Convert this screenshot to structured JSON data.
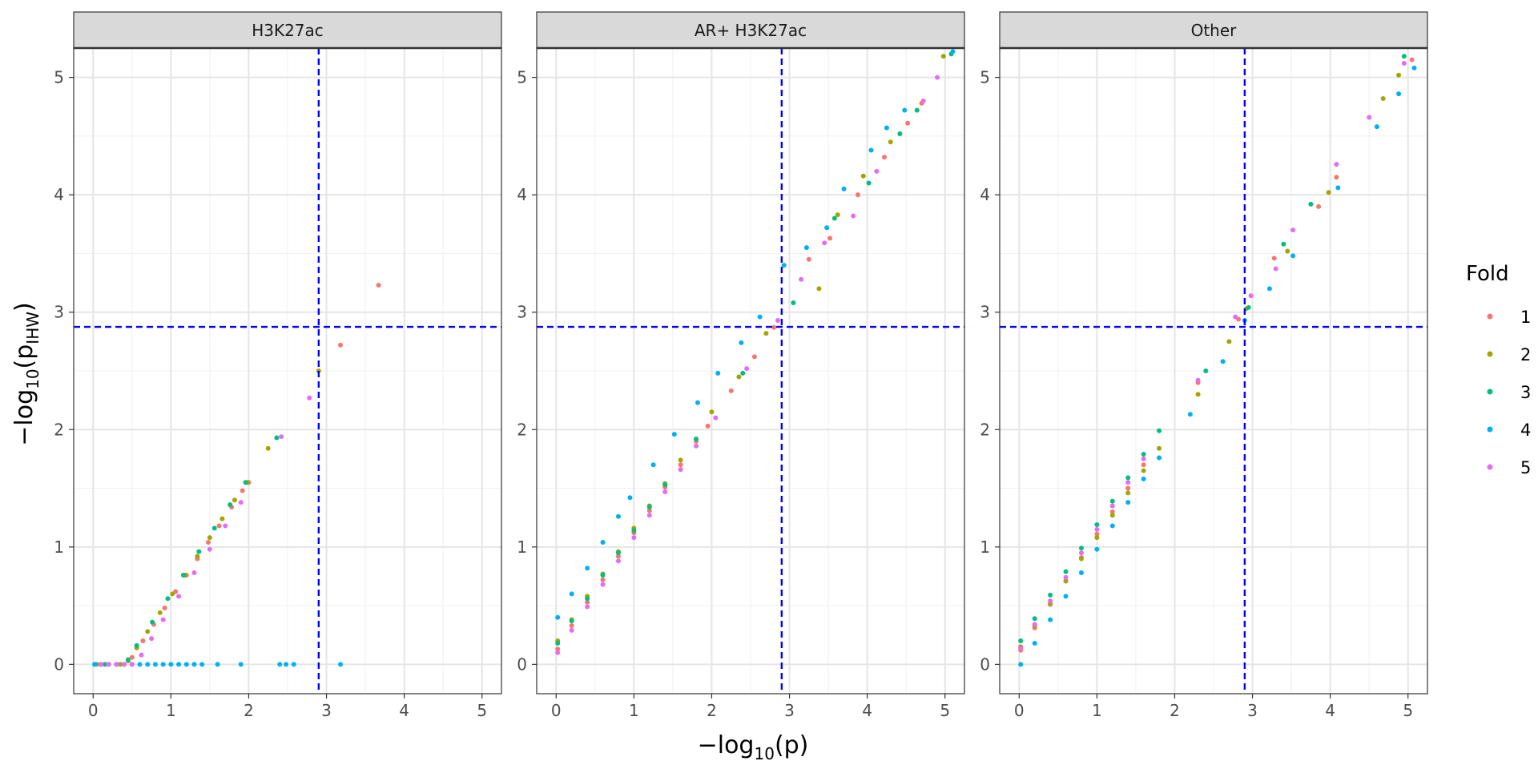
{
  "chart_data": {
    "type": "scatter",
    "xlabel": "−log10(p)",
    "ylabel": "−log10(pIHW)",
    "xlim": [
      -0.25,
      5.25
    ],
    "ylim": [
      -0.25,
      5.25
    ],
    "x_ticks": [
      0,
      1,
      2,
      3,
      4,
      5
    ],
    "y_ticks": [
      0,
      1,
      2,
      3,
      4,
      5
    ],
    "grid": true,
    "reference_lines": {
      "vertical_x": 2.9,
      "horizontal_y": 2.875,
      "color": "#0000ff",
      "style": "dashed"
    },
    "legend": {
      "title": "Fold",
      "position": "right",
      "entries": [
        {
          "label": "1",
          "color": "#F8766D"
        },
        {
          "label": "2",
          "color": "#A3A500"
        },
        {
          "label": "3",
          "color": "#00BF7D"
        },
        {
          "label": "4",
          "color": "#00B0F6"
        },
        {
          "label": "5",
          "color": "#E76BF3"
        }
      ]
    },
    "panels": [
      {
        "label": "H3K27ac",
        "series": [
          {
            "name": "1",
            "fold": 1,
            "x": [
              3.67,
              3.18,
              2.0,
              1.92,
              1.78,
              1.62,
              1.48,
              1.34,
              1.2,
              1.06,
              0.92,
              0.78,
              0.64,
              0.5
            ],
            "y": [
              3.23,
              2.72,
              1.55,
              1.48,
              1.34,
              1.18,
              1.04,
              0.9,
              0.76,
              0.62,
              0.48,
              0.34,
              0.2,
              0.06
            ]
          },
          {
            "name": "2",
            "fold": 2,
            "x": [
              2.9,
              2.25,
              1.98,
              1.82,
              1.66,
              1.5,
              1.34,
              1.18,
              1.02,
              0.86,
              0.7,
              0.56,
              0.45,
              0.35,
              0.2,
              0.05
            ],
            "y": [
              2.5,
              1.84,
              1.55,
              1.4,
              1.24,
              1.08,
              0.92,
              0.76,
              0.6,
              0.44,
              0.28,
              0.14,
              0.03,
              0.0,
              0.0,
              0.0
            ]
          },
          {
            "name": "3",
            "fold": 3,
            "x": [
              2.36,
              1.96,
              1.76,
              1.56,
              1.36,
              1.16,
              0.96,
              0.76,
              0.56,
              0.45,
              0.3,
              0.15,
              0.02
            ],
            "y": [
              1.93,
              1.55,
              1.36,
              1.16,
              0.96,
              0.76,
              0.56,
              0.36,
              0.16,
              0.04,
              0.0,
              0.0,
              0.0
            ]
          },
          {
            "name": "4",
            "fold": 4,
            "x": [
              3.18,
              2.58,
              2.48,
              2.4,
              1.9,
              1.6,
              1.4,
              1.3,
              1.2,
              1.1,
              1.0,
              0.9,
              0.8,
              0.7,
              0.6,
              0.5,
              0.4,
              0.3,
              0.2,
              0.1,
              0.02
            ],
            "y": [
              0,
              0,
              0,
              0,
              0,
              0,
              0,
              0,
              0,
              0,
              0,
              0,
              0,
              0,
              0,
              0,
              0,
              0,
              0,
              0,
              0
            ]
          },
          {
            "name": "5",
            "fold": 5,
            "x": [
              2.78,
              2.42,
              1.9,
              1.7,
              1.5,
              1.3,
              1.1,
              0.9,
              0.75,
              0.62,
              0.5,
              0.4,
              0.3,
              0.2,
              0.1
            ],
            "y": [
              2.27,
              1.94,
              1.38,
              1.18,
              0.98,
              0.78,
              0.58,
              0.38,
              0.22,
              0.08,
              0.0,
              0.0,
              0.0,
              0.0,
              0.0
            ]
          }
        ]
      },
      {
        "label": "AR+ H3K27ac",
        "series": [
          {
            "name": "1",
            "fold": 1,
            "x": [
              0.02,
              0.2,
              0.4,
              0.6,
              0.8,
              1.0,
              1.2,
              1.4,
              1.6,
              1.8,
              1.95,
              2.25,
              2.55,
              2.8,
              3.25,
              3.52,
              3.88,
              4.22,
              4.52,
              4.7
            ],
            "y": [
              0.13,
              0.33,
              0.53,
              0.72,
              0.92,
              1.12,
              1.31,
              1.51,
              1.7,
              1.9,
              2.03,
              2.33,
              2.62,
              2.87,
              3.45,
              3.63,
              4.0,
              4.32,
              4.61,
              4.78
            ]
          },
          {
            "name": "2",
            "fold": 2,
            "x": [
              0.02,
              0.2,
              0.4,
              0.6,
              0.8,
              1.0,
              1.2,
              1.4,
              1.6,
              2.0,
              2.35,
              2.7,
              3.38,
              3.62,
              3.95,
              4.3,
              4.98
            ],
            "y": [
              0.2,
              0.38,
              0.58,
              0.77,
              0.96,
              1.16,
              1.35,
              1.54,
              1.74,
              2.15,
              2.45,
              2.82,
              3.2,
              3.83,
              4.16,
              4.45,
              5.18
            ]
          },
          {
            "name": "3",
            "fold": 3,
            "x": [
              0.02,
              0.2,
              0.4,
              0.6,
              0.8,
              1.0,
              1.2,
              1.4,
              1.8,
              2.4,
              3.05,
              3.58,
              4.02,
              4.42,
              4.64,
              5.08
            ],
            "y": [
              0.18,
              0.37,
              0.56,
              0.76,
              0.95,
              1.14,
              1.34,
              1.53,
              1.92,
              2.48,
              3.08,
              3.8,
              4.1,
              4.52,
              4.72,
              5.2
            ]
          },
          {
            "name": "4",
            "fold": 4,
            "x": [
              0.02,
              0.2,
              0.4,
              0.6,
              0.8,
              0.95,
              1.25,
              1.52,
              1.82,
              2.08,
              2.38,
              2.62,
              2.93,
              3.22,
              3.48,
              3.7,
              4.05,
              4.25,
              4.48,
              5.1
            ],
            "y": [
              0.4,
              0.6,
              0.82,
              1.04,
              1.26,
              1.42,
              1.7,
              1.96,
              2.23,
              2.48,
              2.74,
              2.96,
              3.4,
              3.55,
              3.72,
              4.05,
              4.38,
              4.57,
              4.72,
              5.22
            ]
          },
          {
            "name": "5",
            "fold": 5,
            "x": [
              0.02,
              0.2,
              0.4,
              0.6,
              0.8,
              1.0,
              1.2,
              1.4,
              1.6,
              1.8,
              2.05,
              2.45,
              2.85,
              3.15,
              3.45,
              3.82,
              4.12,
              4.72,
              4.9
            ],
            "y": [
              0.1,
              0.29,
              0.49,
              0.68,
              0.88,
              1.08,
              1.27,
              1.47,
              1.66,
              1.86,
              2.1,
              2.52,
              2.93,
              3.28,
              3.59,
              3.82,
              4.2,
              4.8,
              5.0
            ]
          }
        ]
      },
      {
        "label": "Other",
        "series": [
          {
            "name": "1",
            "fold": 1,
            "x": [
              0.02,
              0.2,
              0.4,
              0.6,
              0.8,
              1.0,
              1.2,
              1.4,
              1.6,
              2.3,
              2.82,
              3.28,
              3.85,
              4.08,
              5.05
            ],
            "y": [
              0.12,
              0.31,
              0.51,
              0.71,
              0.91,
              1.11,
              1.3,
              1.5,
              1.7,
              2.4,
              2.94,
              3.46,
              3.9,
              4.15,
              5.15
            ]
          },
          {
            "name": "2",
            "fold": 2,
            "x": [
              0.02,
              0.2,
              0.4,
              0.6,
              0.8,
              1.0,
              1.2,
              1.4,
              1.6,
              1.8,
              2.3,
              2.7,
              2.92,
              3.45,
              3.98,
              4.68,
              4.88
            ],
            "y": [
              0.15,
              0.33,
              0.52,
              0.71,
              0.9,
              1.08,
              1.27,
              1.46,
              1.65,
              1.84,
              2.3,
              2.75,
              3.03,
              3.52,
              4.02,
              4.82,
              5.02
            ]
          },
          {
            "name": "3",
            "fold": 3,
            "x": [
              0.02,
              0.2,
              0.4,
              0.6,
              0.8,
              1.0,
              1.2,
              1.4,
              1.6,
              1.8,
              2.4,
              2.95,
              3.4,
              3.75,
              4.95
            ],
            "y": [
              0.2,
              0.39,
              0.59,
              0.79,
              0.99,
              1.19,
              1.39,
              1.59,
              1.79,
              1.99,
              2.5,
              3.04,
              3.58,
              3.92,
              5.18
            ]
          },
          {
            "name": "4",
            "fold": 4,
            "x": [
              0.02,
              0.2,
              0.4,
              0.6,
              0.8,
              1.0,
              1.2,
              1.4,
              1.6,
              1.8,
              2.2,
              2.62,
              2.9,
              3.22,
              3.52,
              4.1,
              4.6,
              4.88,
              5.08
            ],
            "y": [
              0.0,
              0.18,
              0.38,
              0.58,
              0.78,
              0.98,
              1.18,
              1.38,
              1.58,
              1.76,
              2.13,
              2.58,
              2.93,
              3.2,
              3.48,
              4.06,
              4.58,
              4.86,
              5.08
            ]
          },
          {
            "name": "5",
            "fold": 5,
            "x": [
              0.02,
              0.2,
              0.4,
              0.6,
              0.8,
              1.0,
              1.2,
              1.4,
              1.6,
              2.3,
              2.78,
              2.98,
              3.3,
              3.52,
              4.08,
              4.5,
              4.95
            ],
            "y": [
              0.14,
              0.34,
              0.54,
              0.74,
              0.95,
              1.15,
              1.35,
              1.55,
              1.75,
              2.42,
              2.96,
              3.14,
              3.37,
              3.7,
              4.26,
              4.66,
              5.12
            ]
          }
        ]
      }
    ]
  }
}
